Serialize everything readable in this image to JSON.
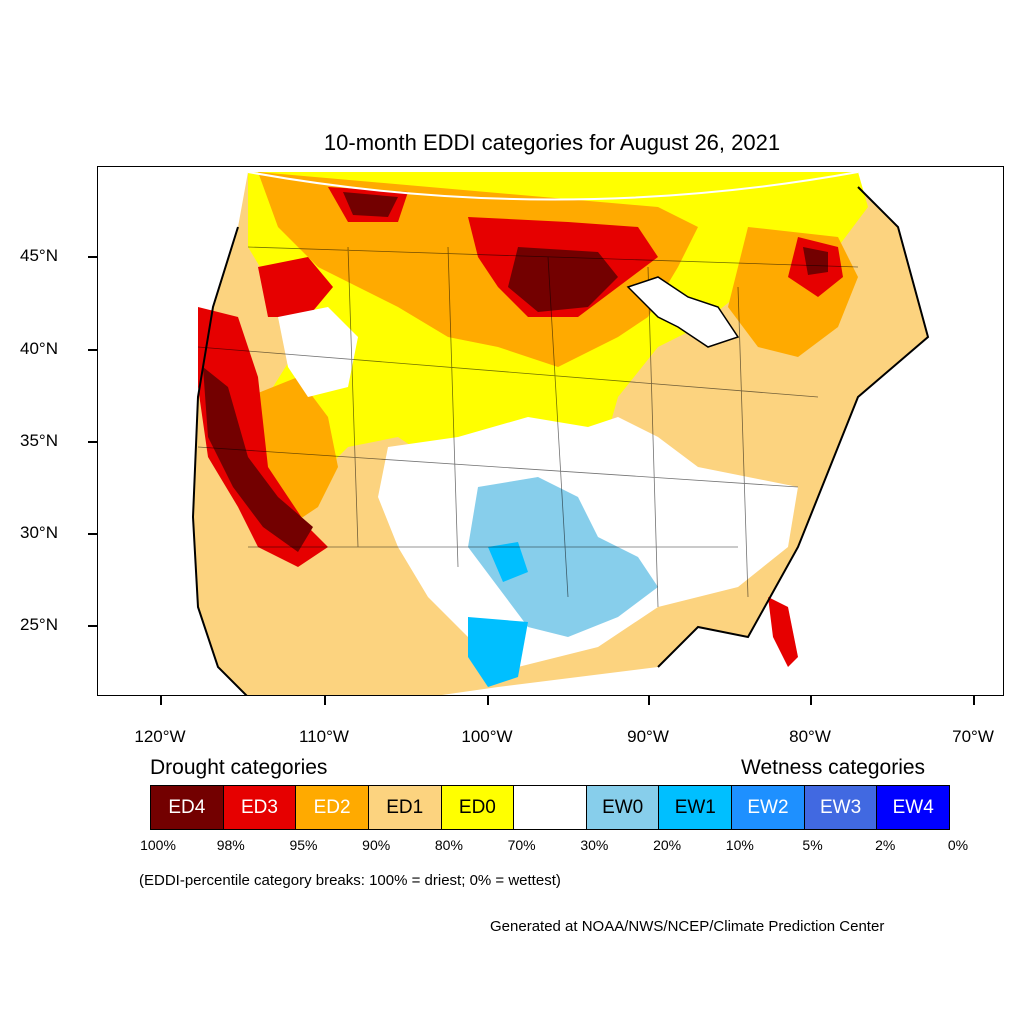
{
  "title": "10-month EDDI categories for August 26, 2021",
  "lat_labels": [
    "45°N",
    "40°N",
    "35°N",
    "30°N",
    "25°N"
  ],
  "lon_labels": [
    "120°W",
    "110°W",
    "100°W",
    "90°W",
    "80°W",
    "70°W"
  ],
  "legend": {
    "drought_heading": "Drought categories",
    "wetness_heading": "Wetness categories",
    "categories": [
      {
        "label": "ED4",
        "color": "#730000",
        "text_color": "#ffffff"
      },
      {
        "label": "ED3",
        "color": "#e60000",
        "text_color": "#ffffff"
      },
      {
        "label": "ED2",
        "color": "#ffaa00",
        "text_color": "#ffffff"
      },
      {
        "label": "ED1",
        "color": "#fcd37f",
        "text_color": "#000000"
      },
      {
        "label": "ED0",
        "color": "#ffff00",
        "text_color": "#000000"
      },
      {
        "label": "",
        "color": "#ffffff",
        "text_color": "#000000"
      },
      {
        "label": "EW0",
        "color": "#87ceeb",
        "text_color": "#000000"
      },
      {
        "label": "EW1",
        "color": "#00bfff",
        "text_color": "#000000"
      },
      {
        "label": "EW2",
        "color": "#1e90ff",
        "text_color": "#ffffff"
      },
      {
        "label": "EW3",
        "color": "#4169e1",
        "text_color": "#ffffff"
      },
      {
        "label": "EW4",
        "color": "#0000ff",
        "text_color": "#ffffff"
      }
    ],
    "breaks": [
      "100%",
      "98%",
      "95%",
      "90%",
      "80%",
      "70%",
      "30%",
      "20%",
      "10%",
      "5%",
      "2%",
      "0%"
    ]
  },
  "note": "(EDDI-percentile category breaks: 100% = driest; 0% = wettest)",
  "credit": "Generated at NOAA/NWS/NCEP/Climate Prediction Center"
}
